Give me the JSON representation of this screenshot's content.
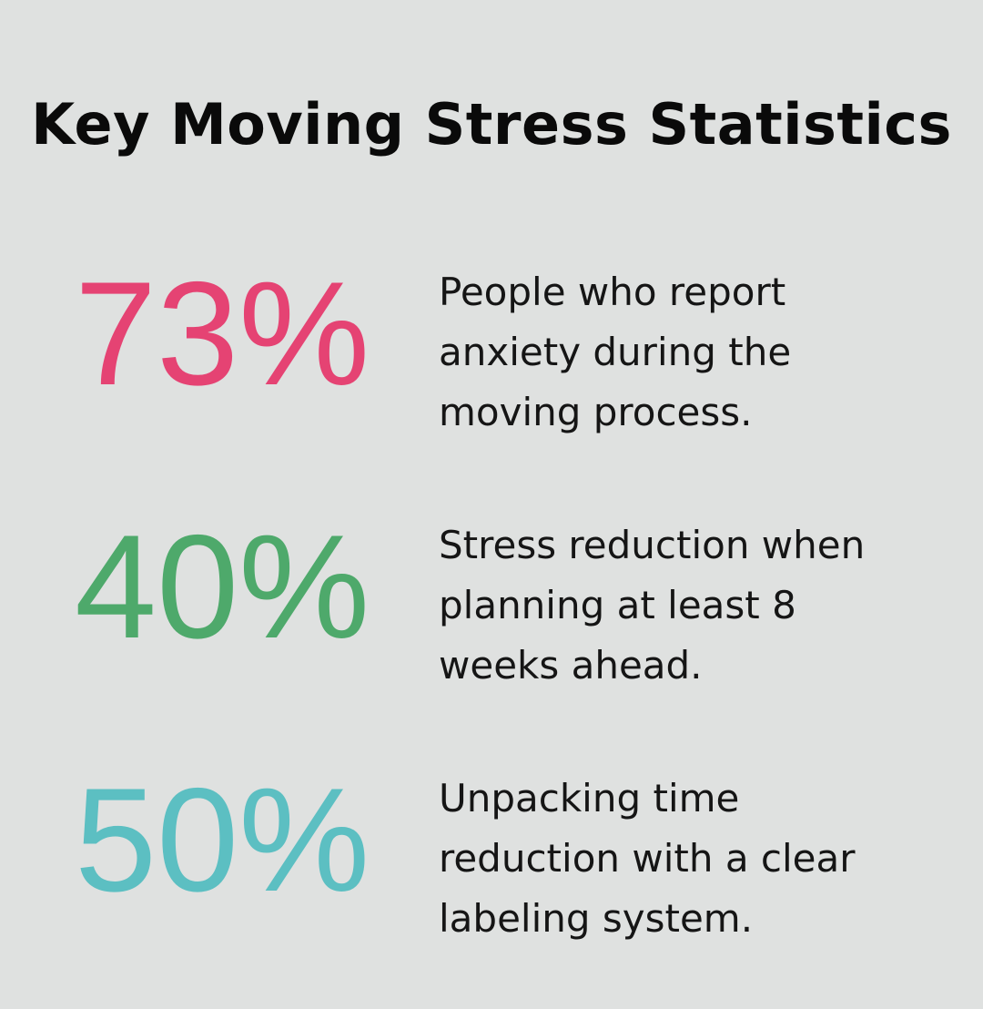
{
  "title": "Key Moving Stress Statistics",
  "colors": {
    "background": "#dfe1e0",
    "pink": "#e54373",
    "green": "#4ea96b",
    "teal": "#5cbfc2"
  },
  "stats": [
    {
      "value": "73%",
      "color": "#e54373",
      "lines": [
        "People who report",
        "anxiety during the",
        "moving process."
      ]
    },
    {
      "value": "40%",
      "color": "#4ea96b",
      "lines": [
        "Stress reduction when",
        "planning at least 8",
        "weeks ahead."
      ]
    },
    {
      "value": "50%",
      "color": "#5cbfc2",
      "lines": [
        "Unpacking time",
        "reduction with a clear",
        "labeling system."
      ]
    }
  ]
}
